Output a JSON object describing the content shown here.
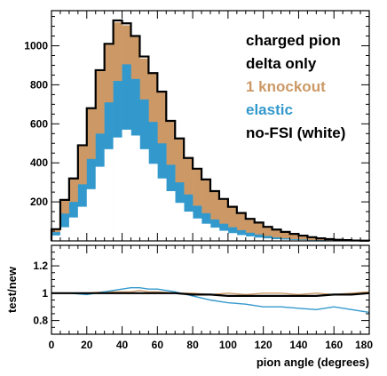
{
  "chart_data": [
    {
      "type": "area",
      "stacked": false,
      "x_bin_width": 5,
      "x_bin_edges_range": [
        0,
        180
      ],
      "xlim": [
        0,
        180
      ],
      "ylim": [
        0,
        1180
      ],
      "yticks": [
        200,
        400,
        600,
        800,
        1000
      ],
      "ytick_labels": [
        "200",
        "400",
        "600",
        "800",
        "1000"
      ],
      "legend_placement": "top-right",
      "legend": [
        "charged pion",
        "delta only",
        "1 knockout",
        "elastic",
        "no-FSI (white)"
      ],
      "series": [
        {
          "name": "1 knockout",
          "color": "#cc9966",
          "values": [
            60,
            210,
            320,
            485,
            675,
            870,
            1005,
            1120,
            1105,
            1045,
            935,
            855,
            760,
            610,
            520,
            420,
            365,
            310,
            250,
            210,
            172,
            140,
            110,
            92,
            70,
            56,
            44,
            34,
            26,
            18,
            12,
            8,
            5,
            3,
            2,
            1
          ]
        },
        {
          "name": "elastic",
          "color": "#3399cc",
          "values": [
            45,
            140,
            200,
            290,
            420,
            550,
            710,
            820,
            905,
            830,
            725,
            610,
            500,
            390,
            300,
            238,
            180,
            142,
            110,
            88,
            70,
            55,
            42,
            33,
            25,
            18,
            13,
            9,
            7,
            5,
            4,
            3,
            2,
            1,
            1,
            0
          ]
        },
        {
          "name": "no-FSI (white)",
          "color": "#ffffff",
          "values": [
            28,
            70,
            120,
            175,
            265,
            380,
            470,
            530,
            570,
            540,
            470,
            395,
            320,
            255,
            195,
            150,
            115,
            88,
            68,
            52,
            40,
            30,
            23,
            17,
            13,
            9,
            7,
            5,
            4,
            3,
            2,
            1,
            1,
            1,
            0,
            0
          ]
        },
        {
          "name": "charged pion",
          "color": "#000000",
          "values": [
            60,
            210,
            320,
            490,
            680,
            875,
            1010,
            1130,
            1115,
            1050,
            945,
            860,
            765,
            615,
            525,
            425,
            370,
            315,
            255,
            215,
            175,
            143,
            113,
            94,
            72,
            58,
            46,
            36,
            27,
            19,
            13,
            9,
            6,
            4,
            2,
            1
          ]
        }
      ]
    },
    {
      "type": "line",
      "xlabel": "pion angle (degrees)",
      "ylabel": "test/new",
      "xlim": [
        0,
        180
      ],
      "ylim": [
        0.7,
        1.35
      ],
      "xticks": [
        0,
        20,
        40,
        60,
        80,
        100,
        120,
        140,
        160,
        180
      ],
      "xtick_labels": [
        "0",
        "20",
        "40",
        "60",
        "80",
        "100",
        "120",
        "140",
        "160",
        "180"
      ],
      "yticks": [
        0.8,
        1.0,
        1.2
      ],
      "ytick_labels": [
        "0.8",
        "1",
        "1.2"
      ],
      "x": [
        0,
        10,
        20,
        30,
        40,
        45,
        50,
        55,
        60,
        70,
        80,
        90,
        100,
        110,
        120,
        130,
        140,
        150,
        160,
        170,
        180
      ],
      "series": [
        {
          "name": "1 knockout",
          "color": "#cc9966",
          "values": [
            1.0,
            1.0,
            1.0,
            1.01,
            1.01,
            1.01,
            1.02,
            1.01,
            1.01,
            1.0,
            1.0,
            0.99,
            1.0,
            0.99,
            1.0,
            1.0,
            0.99,
            1.0,
            0.99,
            1.0,
            1.01
          ]
        },
        {
          "name": "elastic",
          "color": "#3399cc",
          "values": [
            1.0,
            1.0,
            0.99,
            1.01,
            1.03,
            1.04,
            1.04,
            1.03,
            1.03,
            1.01,
            0.98,
            0.95,
            0.93,
            0.92,
            0.9,
            0.9,
            0.89,
            0.88,
            0.9,
            0.88,
            0.86
          ]
        },
        {
          "name": "charged pion",
          "color": "#000000",
          "values": [
            1.0,
            1.0,
            1.0,
            1.0,
            1.0,
            1.0,
            1.0,
            1.0,
            1.0,
            1.0,
            0.99,
            0.99,
            0.98,
            0.98,
            0.98,
            0.98,
            0.98,
            0.98,
            0.99,
            0.99,
            1.0
          ]
        }
      ]
    }
  ]
}
